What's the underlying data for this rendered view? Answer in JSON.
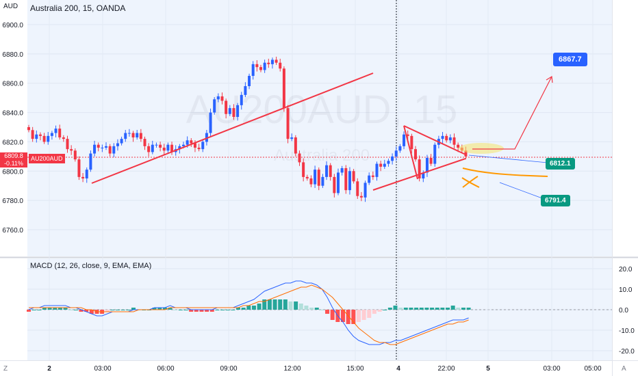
{
  "title": "Australia 200, 15, OANDA",
  "currency": "AUD",
  "watermark": {
    "symbol": "AU200AUD, 15",
    "name": "Australia 200"
  },
  "last_price": {
    "value": "6809.8",
    "change": "-0.11%",
    "symbol": "AU200AUD"
  },
  "callouts": {
    "target": "6867.7",
    "mid": "6812.1",
    "low": "6791.4"
  },
  "macd_label": "MACD (12, 26, close, 9, EMA, EMA)",
  "corner_left": "Z",
  "corner_right": "A",
  "colors": {
    "bg": "#eef4fd",
    "up": "#2962ff",
    "down": "#f23645",
    "trend": "#f23645",
    "macd_line": "#2962ff",
    "signal_line": "#ff6d00",
    "hist_pos_strong": "#26a69a",
    "hist_pos_weak": "#b2dfdb",
    "hist_neg_strong": "#ff5252",
    "hist_neg_weak": "#ffcdd2",
    "tag_teal": "#089981",
    "tag_blue": "#2962ff"
  },
  "chart_data": [
    {
      "type": "candlestick",
      "title": "Australia 200, 15, OANDA",
      "ylim": [
        6745,
        6920
      ],
      "y_ticks": [
        "6900.0",
        "6880.0",
        "6860.0",
        "6840.0",
        "6820.0",
        "6800.0",
        "6780.0",
        "6760.0"
      ],
      "x_ticks": [
        "2",
        "03:00",
        "06:00",
        "09:00",
        "12:00",
        "15:00",
        "4",
        "22:00",
        "5",
        "03:00",
        "05:00"
      ],
      "closes": [
        6828,
        6822,
        6825,
        6824,
        6820,
        6824,
        6826,
        6829,
        6823,
        6822,
        6815,
        6814,
        6808,
        6796,
        6795,
        6801,
        6812,
        6818,
        6816,
        6816,
        6817,
        6812,
        6817,
        6819,
        6822,
        6826,
        6826,
        6823,
        6826,
        6822,
        6817,
        6813,
        6818,
        6818,
        6816,
        6814,
        6818,
        6813,
        6815,
        6817,
        6818,
        6821,
        6819,
        6816,
        6815,
        6820,
        6826,
        6840,
        6849,
        6851,
        6848,
        6839,
        6843,
        6837,
        6845,
        6852,
        6858,
        6865,
        6873,
        6871,
        6869,
        6874,
        6873,
        6876,
        6874,
        6870,
        6843,
        6822,
        6823,
        6812,
        6806,
        6796,
        6795,
        6791,
        6801,
        6790,
        6796,
        6804,
        6796,
        6785,
        6799,
        6802,
        6787,
        6800,
        6793,
        6783,
        6782,
        6792,
        6797,
        6796,
        6805,
        6803,
        6805,
        6807,
        6810,
        6814,
        6817,
        6825,
        6824,
        6815,
        6808,
        6795,
        6799,
        6809,
        6805,
        6818,
        6822,
        6824,
        6821,
        6823,
        6818,
        6816,
        6814,
        6810
      ],
      "macd_line": [
        0,
        1,
        1,
        2,
        2,
        2,
        2,
        2,
        1,
        1,
        0,
        -1,
        -2,
        -3,
        -3,
        -2,
        -1,
        -1,
        -1,
        -1,
        0,
        0,
        0,
        0,
        1,
        1,
        1,
        2,
        1,
        1,
        1,
        0,
        0,
        0,
        0,
        0,
        1,
        1,
        1,
        1,
        2,
        3,
        4,
        5,
        7,
        9,
        10,
        11,
        12,
        13,
        13,
        14,
        14,
        13,
        13,
        12,
        10,
        6,
        1,
        -3,
        -6,
        -10,
        -13,
        -15,
        -16,
        -17,
        -17,
        -17,
        -16,
        -16,
        -15,
        -15,
        -14,
        -13,
        -12,
        -11,
        -10,
        -9,
        -8,
        -7,
        -6,
        -5,
        -5,
        -5,
        -4
      ],
      "signal_line": [
        1,
        1,
        1,
        1,
        1,
        1,
        1,
        1,
        1,
        1,
        1,
        0,
        0,
        -1,
        -1,
        -1,
        -1,
        -1,
        -1,
        -1,
        -1,
        0,
        0,
        0,
        0,
        0,
        0,
        1,
        1,
        1,
        1,
        1,
        1,
        1,
        1,
        1,
        1,
        1,
        1,
        1,
        1,
        2,
        2,
        3,
        4,
        4,
        5,
        6,
        7,
        8,
        9,
        10,
        11,
        11,
        12,
        11,
        10,
        8,
        6,
        3,
        0,
        -3,
        -6,
        -9,
        -11,
        -13,
        -15,
        -16,
        -16,
        -17,
        -17,
        -16,
        -15,
        -14,
        -13,
        -12,
        -11,
        -10,
        -9,
        -8,
        -7,
        -7,
        -6,
        -6,
        -5
      ],
      "macd_ylim": [
        -24,
        24
      ],
      "macd_y_ticks": [
        "20.0",
        "10.0",
        "0.0",
        "-10.0",
        "-20.0"
      ]
    }
  ]
}
